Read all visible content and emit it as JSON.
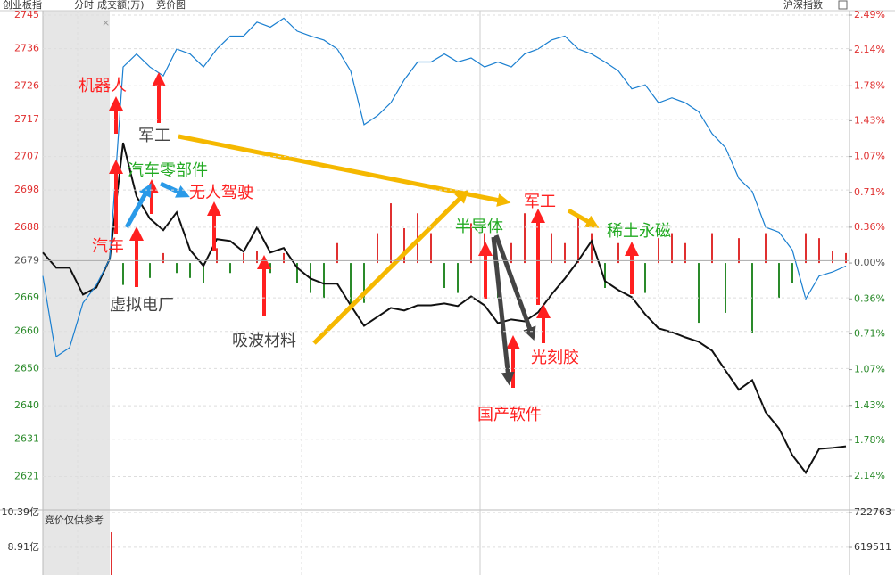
{
  "chart_data": {
    "type": "line",
    "header_labels": [
      "分时",
      "成交额(万)",
      "竞价图"
    ],
    "ylim": [
      2612,
      2746.2
    ],
    "yticks": [
      2745,
      2736,
      2726,
      2717,
      2707,
      2698,
      2688,
      2679,
      2669,
      2660,
      2650,
      2640,
      2631,
      2621
    ],
    "y2lim": [
      -2.48,
      2.535
    ],
    "y2ticks": [
      {
        "value": 2.49,
        "label": "2.49%"
      },
      {
        "value": 2.14,
        "label": "2.14%"
      },
      {
        "value": 1.78,
        "label": "1.78%"
      },
      {
        "value": 1.43,
        "label": "1.43%"
      },
      {
        "value": 1.07,
        "label": "1.07%"
      },
      {
        "value": 0.71,
        "label": "0.71%"
      },
      {
        "value": 0.36,
        "label": "0.36%"
      },
      {
        "value": 0,
        "label": "0.00%"
      },
      {
        "value": -0.36,
        "label": "0.36%"
      },
      {
        "value": -0.71,
        "label": "0.71%"
      },
      {
        "value": -1.07,
        "label": "1.07%"
      },
      {
        "value": -1.43,
        "label": "1.43%"
      },
      {
        "value": -1.78,
        "label": "1.78%"
      },
      {
        "value": -2.14,
        "label": "2.14%"
      }
    ],
    "up_color": "#e03030",
    "down_color": "#2a8a2a",
    "flat_color": "#555555",
    "grid": true,
    "series": [
      {
        "name": "创业板指",
        "color": "#111111",
        "values": [
          2681.2,
          2677.1,
          2677.1,
          2669.9,
          2671.8,
          2679.5,
          2710.7,
          2696.3,
          2690.3,
          2687.2,
          2692.0,
          2681.9,
          2677.6,
          2684.8,
          2684.3,
          2681.4,
          2687.9,
          2681.2,
          2682.4,
          2677.1,
          2674.2,
          2672.8,
          2672.8,
          2667.0,
          2661.5,
          2663.9,
          2666.3,
          2665.6,
          2667.0,
          2667.0,
          2667.5,
          2666.8,
          2669.4,
          2667.0,
          2662.2,
          2663.2,
          2662.7,
          2665.1,
          2669.9,
          2674.2,
          2679.0,
          2684.3,
          2673.5,
          2671.1,
          2669.2,
          2664.6,
          2660.8,
          2659.8,
          2658.4,
          2657.2,
          2654.8,
          2649.5,
          2644.3,
          2646.9,
          2638.3,
          2633.9,
          2626.7,
          2622.0,
          2628.4,
          2628.7,
          2629.1
        ]
      },
      {
        "name": "沪深指数",
        "color": "#1a7fd0",
        "axis": "y2",
        "values": [
          -0.13,
          -0.94,
          -0.85,
          -0.4,
          -0.22,
          0.04,
          1.97,
          2.1,
          1.97,
          1.88,
          2.15,
          2.1,
          1.97,
          2.15,
          2.28,
          2.28,
          2.42,
          2.37,
          2.46,
          2.33,
          2.28,
          2.24,
          2.15,
          1.93,
          1.39,
          1.48,
          1.61,
          1.84,
          2.02,
          2.02,
          2.1,
          2.02,
          2.06,
          1.97,
          2.02,
          1.97,
          2.1,
          2.15,
          2.24,
          2.28,
          2.15,
          2.1,
          2.02,
          1.93,
          1.75,
          1.79,
          1.61,
          1.66,
          1.61,
          1.52,
          1.3,
          1.16,
          0.85,
          0.72,
          0.36,
          0.31,
          0.13,
          -0.36,
          -0.13,
          -0.09,
          -0.03
        ]
      },
      {
        "type": "bar",
        "axis": "y2",
        "values": [
          null,
          null,
          null,
          null,
          null,
          null,
          -0.22,
          -0.2,
          -0.15,
          0.1,
          -0.1,
          -0.15,
          -0.2,
          0.15,
          -0.1,
          0.1,
          0.12,
          -0.1,
          0.1,
          -0.2,
          -0.3,
          -0.35,
          0.2,
          -0.45,
          -0.4,
          0.3,
          0.6,
          0.35,
          0.5,
          0.3,
          -0.25,
          -0.3,
          0.4,
          0.3,
          -0.35,
          0.2,
          0.5,
          0.25,
          0.3,
          0.2,
          0.45,
          0.3,
          -0.25,
          0.2,
          0.2,
          -0.3,
          0.25,
          0.3,
          0.2,
          -0.6,
          0.3,
          -0.5,
          0.25,
          -0.7,
          0.3,
          -0.35,
          -0.2,
          0.3,
          0.25,
          0.12,
          0.1
        ]
      }
    ],
    "annotations": [
      {
        "text": "机器人",
        "color": "#ff2020"
      },
      {
        "text": "军工",
        "color": "#444444"
      },
      {
        "text": "汽车零部件",
        "color": "#22aa22"
      },
      {
        "text": "无人驾驶",
        "color": "#ff2020"
      },
      {
        "text": "汽车",
        "color": "#ff2020"
      },
      {
        "text": "虚拟电厂",
        "color": "#444444"
      },
      {
        "text": "吸波材料",
        "color": "#444444"
      },
      {
        "text": "半导体",
        "color": "#22aa22"
      },
      {
        "text": "军工",
        "color": "#ff2020"
      },
      {
        "text": "稀土永磁",
        "color": "#22aa22"
      },
      {
        "text": "光刻胶",
        "color": "#ff2020"
      },
      {
        "text": "国产软件",
        "color": "#ff2020"
      }
    ],
    "lower_panel": {
      "title": "竞价仅供参考",
      "ylim": [
        7.73,
        10.5
      ],
      "yticks": [
        {
          "value": 10.39,
          "label": "10.39亿"
        },
        {
          "value": 8.91,
          "label": "8.91亿"
        }
      ],
      "y2lim": [
        537439,
        730706
      ],
      "y2ticks": [
        722763,
        619511
      ],
      "values": [
        9.55
      ],
      "color": "#e03030"
    }
  }
}
